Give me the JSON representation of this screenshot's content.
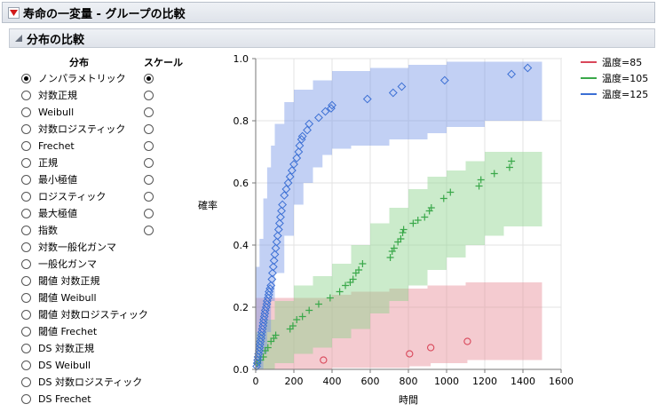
{
  "header": {
    "title": "寿命の一変量 - グループの比較"
  },
  "subheader": {
    "title": "分布の比較"
  },
  "panel": {
    "distribution_heading": "分布",
    "scale_heading": "スケール",
    "distributions": [
      {
        "label": "ノンパラメトリック",
        "selected": true,
        "scale": true,
        "scale_selected": true
      },
      {
        "label": "対数正規",
        "selected": false,
        "scale": true,
        "scale_selected": false
      },
      {
        "label": "Weibull",
        "selected": false,
        "scale": true,
        "scale_selected": false
      },
      {
        "label": "対数ロジスティック",
        "selected": false,
        "scale": true,
        "scale_selected": false
      },
      {
        "label": "Frechet",
        "selected": false,
        "scale": true,
        "scale_selected": false
      },
      {
        "label": "正規",
        "selected": false,
        "scale": true,
        "scale_selected": false
      },
      {
        "label": "最小極値",
        "selected": false,
        "scale": true,
        "scale_selected": false
      },
      {
        "label": "ロジスティック",
        "selected": false,
        "scale": true,
        "scale_selected": false
      },
      {
        "label": "最大極値",
        "selected": false,
        "scale": true,
        "scale_selected": false
      },
      {
        "label": "指数",
        "selected": false,
        "scale": true,
        "scale_selected": false
      },
      {
        "label": "対数一般化ガンマ",
        "selected": false,
        "scale": false
      },
      {
        "label": "一般化ガンマ",
        "selected": false,
        "scale": false
      },
      {
        "label": "閾値 対数正規",
        "selected": false,
        "scale": false
      },
      {
        "label": "閾値 Weibull",
        "selected": false,
        "scale": false
      },
      {
        "label": "閾値 対数ロジスティック",
        "selected": false,
        "scale": false
      },
      {
        "label": "閾値 Frechet",
        "selected": false,
        "scale": false
      },
      {
        "label": "DS 対数正規",
        "selected": false,
        "scale": false
      },
      {
        "label": "DS Weibull",
        "selected": false,
        "scale": false
      },
      {
        "label": "DS 対数ロジスティック",
        "selected": false,
        "scale": false
      },
      {
        "label": "DS Frechet",
        "selected": false,
        "scale": false
      }
    ]
  },
  "legend": [
    {
      "label": "温度=85",
      "color": "#d9475a"
    },
    {
      "label": "温度=105",
      "color": "#3aa84a"
    },
    {
      "label": "温度=125",
      "color": "#3b6fd4"
    }
  ],
  "chart_data": {
    "type": "scatter",
    "xlabel": "時間",
    "ylabel": "確率",
    "xlim": [
      0,
      1600
    ],
    "ylim": [
      0,
      1.0
    ],
    "x_ticks": [
      "0",
      "200",
      "400",
      "600",
      "800",
      "1000",
      "1200",
      "1400",
      "1600"
    ],
    "y_ticks": [
      "0.0",
      "0.2",
      "0.4",
      "0.6",
      "0.8",
      "1.0"
    ],
    "grid": true,
    "legend_position": "right",
    "series": [
      {
        "name": "温度=85",
        "marker": "circle",
        "color": "#d9475a",
        "band_color": "rgba(230,140,150,0.45)",
        "points": [
          [
            355,
            0.03
          ],
          [
            806,
            0.05
          ],
          [
            917,
            0.07
          ],
          [
            1109,
            0.09
          ]
        ],
        "band_upper": [
          [
            0,
            0.23
          ],
          [
            350,
            0.23
          ],
          [
            400,
            0.24
          ],
          [
            500,
            0.25
          ],
          [
            700,
            0.26
          ],
          [
            900,
            0.27
          ],
          [
            1100,
            0.28
          ],
          [
            1500,
            0.28
          ]
        ],
        "band_lower": [
          [
            0,
            0.0
          ],
          [
            350,
            0.0
          ],
          [
            400,
            0.005
          ],
          [
            806,
            0.01
          ],
          [
            917,
            0.02
          ],
          [
            1109,
            0.03
          ],
          [
            1500,
            0.03
          ]
        ]
      },
      {
        "name": "温度=105",
        "marker": "plus",
        "color": "#3aa84a",
        "band_color": "rgba(140,210,140,0.45)",
        "points": [
          [
            8,
            0.02
          ],
          [
            25,
            0.03
          ],
          [
            40,
            0.04
          ],
          [
            50,
            0.06
          ],
          [
            64,
            0.07
          ],
          [
            80,
            0.09
          ],
          [
            95,
            0.1
          ],
          [
            105,
            0.11
          ],
          [
            180,
            0.13
          ],
          [
            195,
            0.14
          ],
          [
            215,
            0.16
          ],
          [
            245,
            0.17
          ],
          [
            280,
            0.19
          ],
          [
            330,
            0.21
          ],
          [
            390,
            0.23
          ],
          [
            440,
            0.25
          ],
          [
            470,
            0.27
          ],
          [
            495,
            0.28
          ],
          [
            510,
            0.29
          ],
          [
            525,
            0.31
          ],
          [
            540,
            0.32
          ],
          [
            560,
            0.34
          ],
          [
            705,
            0.36
          ],
          [
            715,
            0.38
          ],
          [
            725,
            0.39
          ],
          [
            745,
            0.41
          ],
          [
            760,
            0.42
          ],
          [
            770,
            0.44
          ],
          [
            775,
            0.45
          ],
          [
            825,
            0.47
          ],
          [
            850,
            0.48
          ],
          [
            885,
            0.49
          ],
          [
            910,
            0.51
          ],
          [
            920,
            0.52
          ],
          [
            985,
            0.55
          ],
          [
            1020,
            0.57
          ],
          [
            1170,
            0.59
          ],
          [
            1180,
            0.61
          ],
          [
            1250,
            0.63
          ],
          [
            1330,
            0.65
          ],
          [
            1340,
            0.67
          ]
        ],
        "band_upper": [
          [
            0,
            0.12
          ],
          [
            50,
            0.16
          ],
          [
            100,
            0.22
          ],
          [
            200,
            0.27
          ],
          [
            300,
            0.3
          ],
          [
            400,
            0.34
          ],
          [
            500,
            0.4
          ],
          [
            600,
            0.47
          ],
          [
            700,
            0.52
          ],
          [
            800,
            0.58
          ],
          [
            900,
            0.62
          ],
          [
            1000,
            0.64
          ],
          [
            1100,
            0.67
          ],
          [
            1200,
            0.7
          ],
          [
            1500,
            0.7
          ]
        ],
        "band_lower": [
          [
            0,
            0.0
          ],
          [
            50,
            0.0
          ],
          [
            100,
            0.02
          ],
          [
            200,
            0.05
          ],
          [
            300,
            0.07
          ],
          [
            400,
            0.1
          ],
          [
            500,
            0.13
          ],
          [
            600,
            0.18
          ],
          [
            700,
            0.22
          ],
          [
            800,
            0.27
          ],
          [
            900,
            0.32
          ],
          [
            1000,
            0.36
          ],
          [
            1100,
            0.4
          ],
          [
            1200,
            0.43
          ],
          [
            1300,
            0.46
          ],
          [
            1500,
            0.46
          ]
        ]
      },
      {
        "name": "温度=125",
        "marker": "diamond",
        "color": "#3b6fd4",
        "band_color": "rgba(120,150,230,0.45)",
        "points": [
          [
            5,
            0.01
          ],
          [
            8,
            0.02
          ],
          [
            10,
            0.03
          ],
          [
            12,
            0.04
          ],
          [
            15,
            0.05
          ],
          [
            18,
            0.06
          ],
          [
            20,
            0.07
          ],
          [
            22,
            0.08
          ],
          [
            25,
            0.09
          ],
          [
            28,
            0.1
          ],
          [
            30,
            0.11
          ],
          [
            32,
            0.12
          ],
          [
            35,
            0.13
          ],
          [
            38,
            0.14
          ],
          [
            40,
            0.15
          ],
          [
            42,
            0.16
          ],
          [
            45,
            0.17
          ],
          [
            48,
            0.18
          ],
          [
            50,
            0.19
          ],
          [
            55,
            0.2
          ],
          [
            58,
            0.21
          ],
          [
            60,
            0.22
          ],
          [
            65,
            0.23
          ],
          [
            68,
            0.24
          ],
          [
            70,
            0.25
          ],
          [
            75,
            0.26
          ],
          [
            80,
            0.27
          ],
          [
            85,
            0.29
          ],
          [
            88,
            0.31
          ],
          [
            92,
            0.33
          ],
          [
            96,
            0.35
          ],
          [
            100,
            0.37
          ],
          [
            105,
            0.39
          ],
          [
            110,
            0.41
          ],
          [
            115,
            0.43
          ],
          [
            120,
            0.45
          ],
          [
            125,
            0.47
          ],
          [
            130,
            0.49
          ],
          [
            135,
            0.51
          ],
          [
            140,
            0.53
          ],
          [
            150,
            0.56
          ],
          [
            160,
            0.58
          ],
          [
            170,
            0.6
          ],
          [
            180,
            0.62
          ],
          [
            190,
            0.64
          ],
          [
            200,
            0.66
          ],
          [
            215,
            0.68
          ],
          [
            225,
            0.7
          ],
          [
            230,
            0.72
          ],
          [
            240,
            0.74
          ],
          [
            245,
            0.75
          ],
          [
            270,
            0.77
          ],
          [
            280,
            0.79
          ],
          [
            330,
            0.81
          ],
          [
            365,
            0.83
          ],
          [
            395,
            0.84
          ],
          [
            400,
            0.85
          ],
          [
            585,
            0.87
          ],
          [
            720,
            0.89
          ],
          [
            765,
            0.91
          ],
          [
            990,
            0.93
          ],
          [
            1340,
            0.95
          ],
          [
            1425,
            0.97
          ]
        ],
        "band_upper": [
          [
            0,
            0.33
          ],
          [
            20,
            0.42
          ],
          [
            40,
            0.55
          ],
          [
            60,
            0.65
          ],
          [
            80,
            0.72
          ],
          [
            100,
            0.79
          ],
          [
            150,
            0.86
          ],
          [
            200,
            0.9
          ],
          [
            300,
            0.93
          ],
          [
            400,
            0.96
          ],
          [
            600,
            0.97
          ],
          [
            800,
            0.98
          ],
          [
            1000,
            0.99
          ],
          [
            1500,
            0.99
          ]
        ],
        "band_lower": [
          [
            0,
            0.0
          ],
          [
            20,
            0.0
          ],
          [
            40,
            0.05
          ],
          [
            60,
            0.12
          ],
          [
            80,
            0.22
          ],
          [
            100,
            0.31
          ],
          [
            150,
            0.43
          ],
          [
            200,
            0.53
          ],
          [
            250,
            0.6
          ],
          [
            300,
            0.65
          ],
          [
            350,
            0.69
          ],
          [
            400,
            0.71
          ],
          [
            500,
            0.72
          ],
          [
            700,
            0.74
          ],
          [
            900,
            0.76
          ],
          [
            1000,
            0.78
          ],
          [
            1200,
            0.8
          ],
          [
            1500,
            0.8
          ]
        ]
      }
    ]
  }
}
